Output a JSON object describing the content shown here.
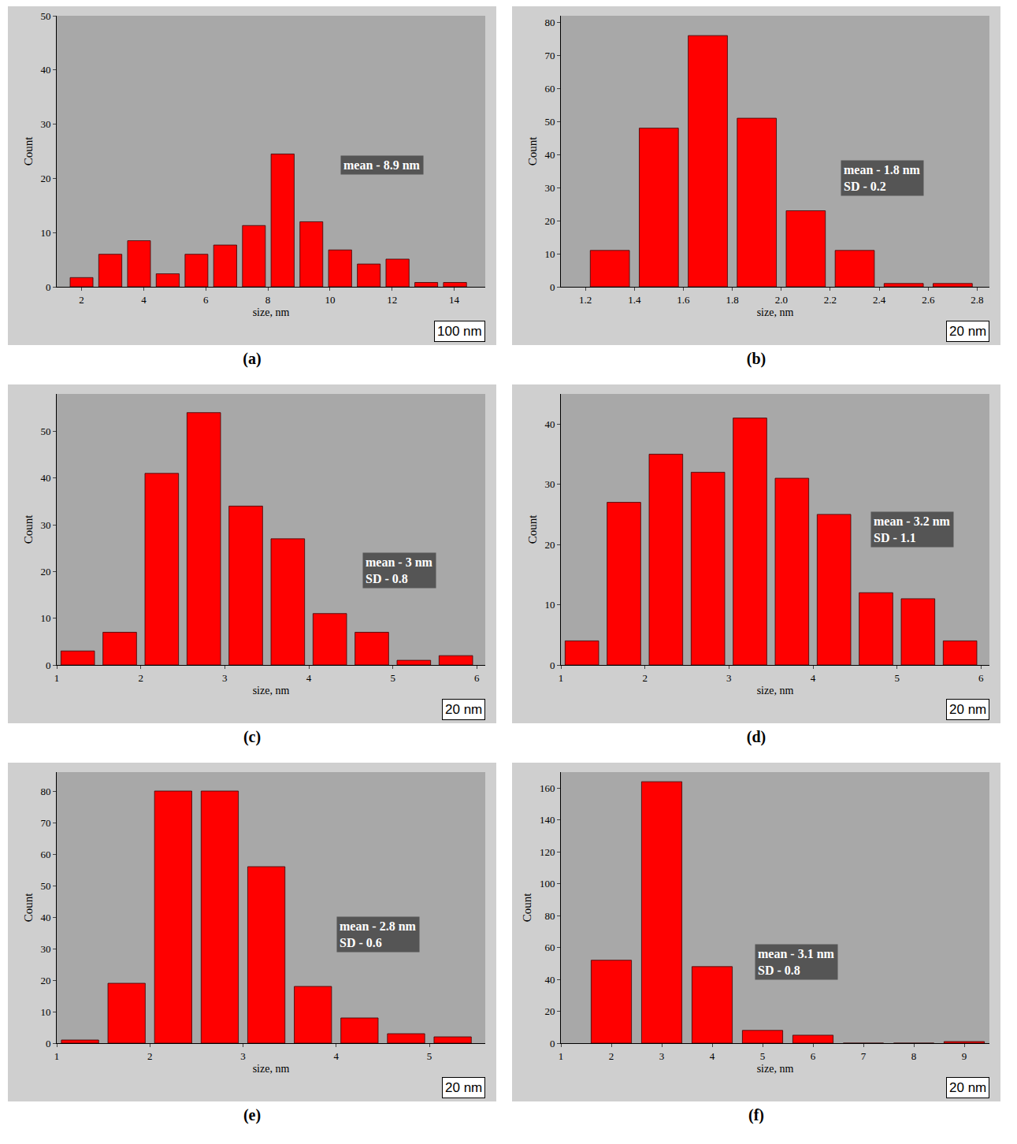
{
  "chart_data": [
    {
      "type": "histogram",
      "panel": "(a)",
      "x_label": "size, nm",
      "y_label": "Count",
      "bins": [
        1.54,
        2.46,
        3.39,
        4.31,
        5.24,
        6.16,
        7.09,
        8.01,
        8.94,
        9.86,
        10.79,
        11.71,
        12.64,
        13.56,
        14.49
      ],
      "values": [
        1.7,
        6,
        8.5,
        2.4,
        6,
        7.7,
        11.3,
        24.5,
        12,
        6.8,
        4.2,
        5.1,
        0.8,
        0.8
      ],
      "color": "#ff0000",
      "grid": false,
      "xlim": [
        1.2,
        15
      ],
      "xticks": [
        2,
        4,
        6,
        8,
        10,
        12,
        14
      ],
      "ylim": [
        0,
        50
      ],
      "yticks": [
        0,
        10,
        20,
        30,
        40,
        50
      ],
      "annotations": [
        "mean - 8.9 nm"
      ],
      "scale_bar": "100 nm"
    },
    {
      "type": "histogram",
      "panel": "(b)",
      "x_label": "size, nm",
      "y_label": "Count",
      "bins": [
        1.2,
        1.4,
        1.6,
        1.8,
        2.0,
        2.2,
        2.4,
        2.6,
        2.8
      ],
      "values": [
        11,
        48,
        76,
        51,
        23,
        11,
        1,
        1
      ],
      "color": "#ff0000",
      "grid": false,
      "xlim": [
        1.1,
        2.85
      ],
      "xticks": [
        1.2,
        1.4,
        1.6,
        1.8,
        {
          "value": 2,
          "label": "2.0"
        },
        2.2,
        2.4,
        2.6,
        2.8
      ],
      "ylim": [
        0,
        82
      ],
      "yticks": [
        0,
        10,
        20,
        30,
        40,
        50,
        60,
        70,
        80
      ],
      "annotations": [
        "mean - 1.8 nm",
        "SD - 0.2"
      ],
      "scale_bar": "20 nm"
    },
    {
      "type": "histogram",
      "panel": "(c)",
      "x_label": "size, nm",
      "y_label": "Count",
      "bins": [
        1,
        1.5,
        2,
        2.5,
        3,
        3.5,
        4,
        4.5,
        5,
        5.5,
        6
      ],
      "values": [
        3,
        7,
        41,
        54,
        34,
        27,
        11,
        7,
        1,
        2
      ],
      "color": "#ff0000",
      "grid": false,
      "xlim": [
        1,
        6.1
      ],
      "xticks": [
        1,
        2,
        3,
        4,
        5,
        6
      ],
      "ylim": [
        0,
        58
      ],
      "yticks": [
        0,
        10,
        20,
        30,
        40,
        50
      ],
      "annotations": [
        "mean - 3 nm",
        "SD - 0.8"
      ],
      "scale_bar": "20 nm"
    },
    {
      "type": "histogram",
      "panel": "(d)",
      "x_label": "size, nm",
      "y_label": "Count",
      "bins": [
        1,
        1.5,
        2,
        2.5,
        3,
        3.5,
        4,
        4.5,
        5,
        5.5,
        6
      ],
      "values": [
        4,
        27,
        35,
        32,
        41,
        31,
        25,
        12,
        11,
        4
      ],
      "color": "#ff0000",
      "grid": false,
      "xlim": [
        1,
        6.1
      ],
      "xticks": [
        1,
        2,
        3,
        4,
        5,
        6
      ],
      "ylim": [
        0,
        45
      ],
      "yticks": [
        0,
        10,
        20,
        30,
        40
      ],
      "annotations": [
        "mean - 3.2 nm",
        "SD - 1.1"
      ],
      "scale_bar": "20 nm"
    },
    {
      "type": "histogram",
      "panel": "(e)",
      "x_label": "size, nm",
      "y_label": "Count",
      "bins": [
        1,
        1.5,
        2,
        2.5,
        3,
        3.5,
        4,
        4.5,
        5,
        5.5
      ],
      "values": [
        1,
        19,
        80,
        80,
        56,
        18,
        8,
        3,
        2
      ],
      "color": "#ff0000",
      "grid": false,
      "xlim": [
        1,
        5.6
      ],
      "xticks": [
        1,
        2,
        3,
        4,
        5
      ],
      "ylim": [
        0,
        86
      ],
      "yticks": [
        0,
        10,
        20,
        30,
        40,
        50,
        60,
        70,
        80
      ],
      "annotations": [
        "mean - 2.8 nm",
        "SD - 0.6"
      ],
      "scale_bar": "20 nm"
    },
    {
      "type": "histogram",
      "panel": "(f)",
      "x_label": "size, nm",
      "y_label": "Count",
      "bins": [
        1.5,
        2.5,
        3.5,
        4.5,
        5.5,
        6.5,
        7.5,
        8.5,
        9.5
      ],
      "values": [
        52,
        164,
        48,
        8,
        5,
        0,
        0,
        1
      ],
      "color": "#ff0000",
      "grid": false,
      "xlim": [
        1,
        9.5
      ],
      "xticks": [
        1,
        2,
        3,
        4,
        5,
        6,
        7,
        8,
        9
      ],
      "ylim": [
        0,
        170
      ],
      "yticks": [
        0,
        20,
        40,
        60,
        80,
        100,
        120,
        140,
        160
      ],
      "annotations": [
        "mean - 3.1 nm",
        "SD - 0.8"
      ],
      "scale_bar": "20 nm"
    }
  ]
}
